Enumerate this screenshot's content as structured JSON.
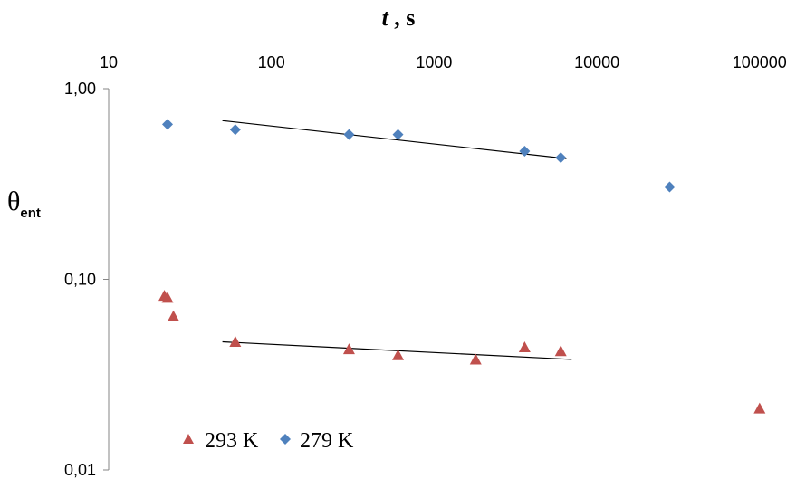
{
  "chart_data": {
    "type": "scatter",
    "title": "",
    "xlabel": {
      "italic": "t",
      "rest": " , s"
    },
    "ylabel": {
      "main": "θ",
      "sub": "ent"
    },
    "x_scale": "log",
    "y_scale": "log",
    "xlim": [
      10,
      200000
    ],
    "ylim": [
      0.01,
      1.0
    ],
    "x_ticks": [
      {
        "value": 10,
        "label": "10"
      },
      {
        "value": 100,
        "label": "100"
      },
      {
        "value": 1000,
        "label": "1000"
      },
      {
        "value": 10000,
        "label": "10000"
      },
      {
        "value": 100000,
        "label": "100000"
      }
    ],
    "y_ticks": [
      {
        "value": 1.0,
        "label": "1,00"
      },
      {
        "value": 0.1,
        "label": "0,10"
      },
      {
        "value": 0.01,
        "label": "0,01"
      }
    ],
    "x_axis_position": "top",
    "grid": false,
    "legend_position": "bottom-left",
    "series": [
      {
        "name": "293 K",
        "marker": "triangle",
        "color": "#c0504d",
        "points": [
          [
            22,
            0.082
          ],
          [
            23,
            0.08
          ],
          [
            25,
            0.064
          ],
          [
            60,
            0.047
          ],
          [
            300,
            0.043
          ],
          [
            600,
            0.04
          ],
          [
            1800,
            0.038
          ],
          [
            3600,
            0.044
          ],
          [
            6000,
            0.042
          ],
          [
            100000,
            0.021
          ]
        ],
        "trend": {
          "x": [
            50,
            7000
          ],
          "y": [
            0.047,
            0.038
          ]
        }
      },
      {
        "name": "279 K",
        "marker": "diamond",
        "color": "#4f81bd",
        "points": [
          [
            23,
            0.65
          ],
          [
            60,
            0.61
          ],
          [
            300,
            0.575
          ],
          [
            600,
            0.575
          ],
          [
            3600,
            0.47
          ],
          [
            6000,
            0.435
          ],
          [
            28000,
            0.305
          ]
        ],
        "trend": {
          "x": [
            50,
            6500
          ],
          "y": [
            0.68,
            0.43
          ]
        }
      }
    ]
  }
}
